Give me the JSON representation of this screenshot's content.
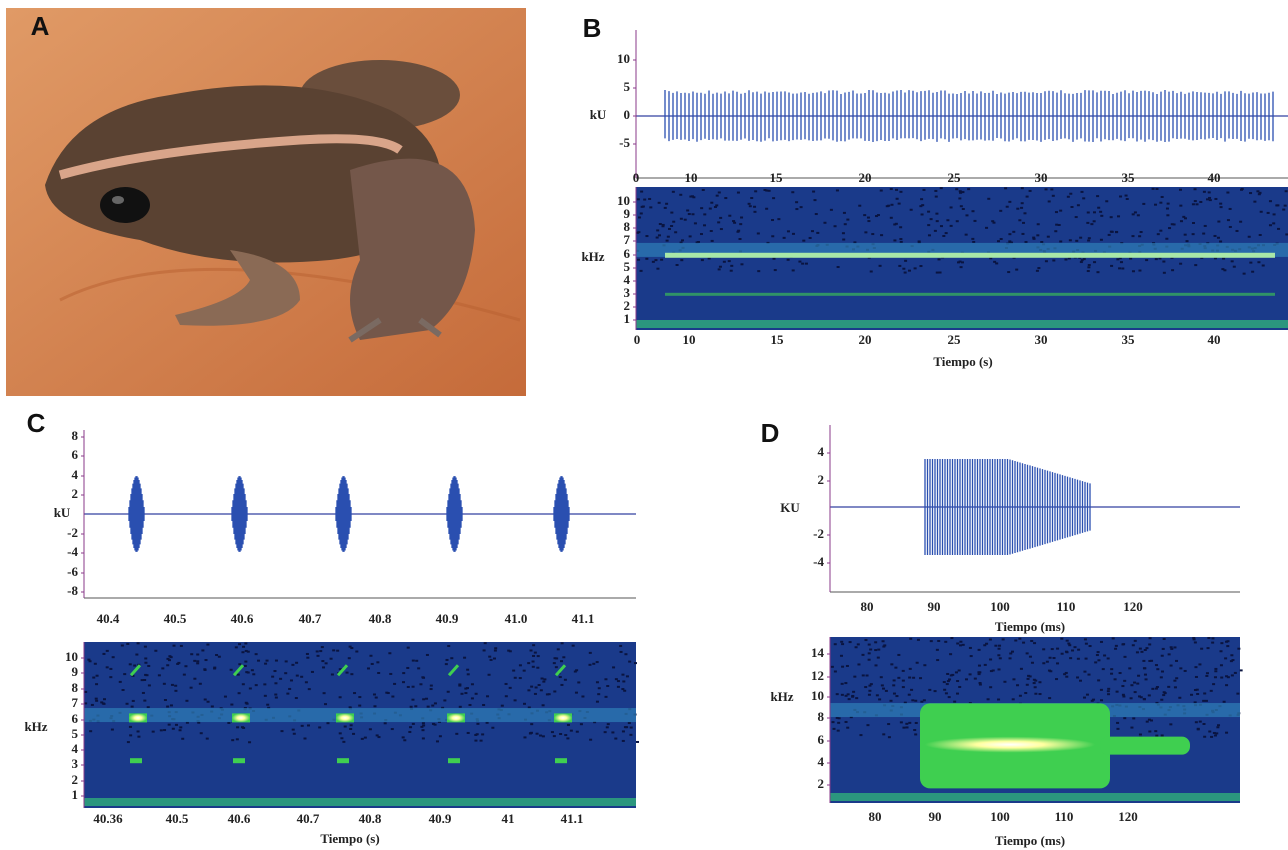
{
  "panels": [
    {
      "label": "A"
    },
    {
      "label": "B",
      "oscillogram": {
        "ylabel": "kU",
        "yticks": [
          10,
          5,
          0,
          -5
        ],
        "xticks": [
          0,
          10,
          15,
          20,
          25,
          30,
          35,
          40
        ]
      },
      "spectrogram": {
        "ylabel": "kHz",
        "yticks": [
          10,
          9,
          8,
          7,
          6,
          5,
          4,
          3,
          2,
          1
        ],
        "xticks": [
          0,
          10,
          15,
          20,
          25,
          30,
          35,
          40
        ],
        "xlabel": "Tiempo (s)"
      }
    },
    {
      "label": "C",
      "oscillogram": {
        "ylabel": "kU",
        "yticks": [
          8,
          6,
          4,
          2,
          -2,
          -4,
          -6,
          -8
        ],
        "xticks": [
          "40.4",
          "40.5",
          "40.6",
          "40.7",
          "40.8",
          "40.9",
          "41.0",
          "41.1"
        ]
      },
      "spectrogram": {
        "ylabel": "kHz",
        "yticks": [
          10,
          9,
          8,
          7,
          6,
          5,
          4,
          3,
          2,
          1
        ],
        "xticks": [
          "40.36",
          "40.5",
          "40.6",
          "40.7",
          "40.8",
          "40.9",
          "41",
          "41.1"
        ],
        "xlabel": "Tiempo (s)"
      }
    },
    {
      "label": "D",
      "oscillogram": {
        "ylabel": "KU",
        "yticks": [
          4,
          2,
          -2,
          -4
        ],
        "xticks": [
          80,
          90,
          100,
          110,
          120
        ],
        "xlabel": "Tiempo (ms)"
      },
      "spectrogram": {
        "ylabel": "kHz",
        "yticks": [
          14,
          12,
          10,
          8,
          6,
          4,
          2
        ],
        "xticks": [
          80,
          90,
          100,
          110,
          120
        ],
        "xlabel": "Tiempo (ms)"
      }
    }
  ]
}
